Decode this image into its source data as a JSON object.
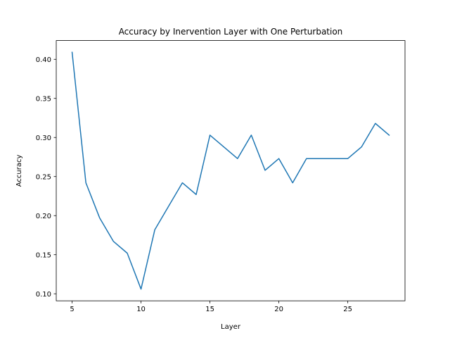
{
  "chart_data": {
    "type": "line",
    "title": "Accuracy by Inervention Layer with One Perturbation",
    "xlabel": "Layer",
    "ylabel": "Accuracy",
    "xlim": [
      3.85,
      29.15
    ],
    "ylim": [
      0.091,
      0.424
    ],
    "xticks": [
      5,
      10,
      15,
      20,
      25
    ],
    "xtick_labels": [
      "5",
      "10",
      "15",
      "20",
      "25"
    ],
    "yticks": [
      0.1,
      0.15,
      0.2,
      0.25,
      0.3,
      0.35,
      0.4
    ],
    "ytick_labels": [
      "0.10",
      "0.15",
      "0.20",
      "0.25",
      "0.30",
      "0.35",
      "0.40"
    ],
    "grid": false,
    "series": [
      {
        "color": "#1f77b4",
        "x": [
          5,
          6,
          7,
          8,
          9,
          10,
          11,
          12,
          13,
          14,
          15,
          16,
          17,
          18,
          19,
          20,
          21,
          22,
          23,
          24,
          25,
          26,
          27,
          28
        ],
        "y": [
          0.409,
          0.242,
          0.197,
          0.167,
          0.152,
          0.106,
          0.182,
          0.212,
          0.242,
          0.227,
          0.303,
          0.288,
          0.273,
          0.303,
          0.258,
          0.273,
          0.242,
          0.273,
          0.273,
          0.273,
          0.273,
          0.288,
          0.318,
          0.303
        ]
      }
    ]
  }
}
